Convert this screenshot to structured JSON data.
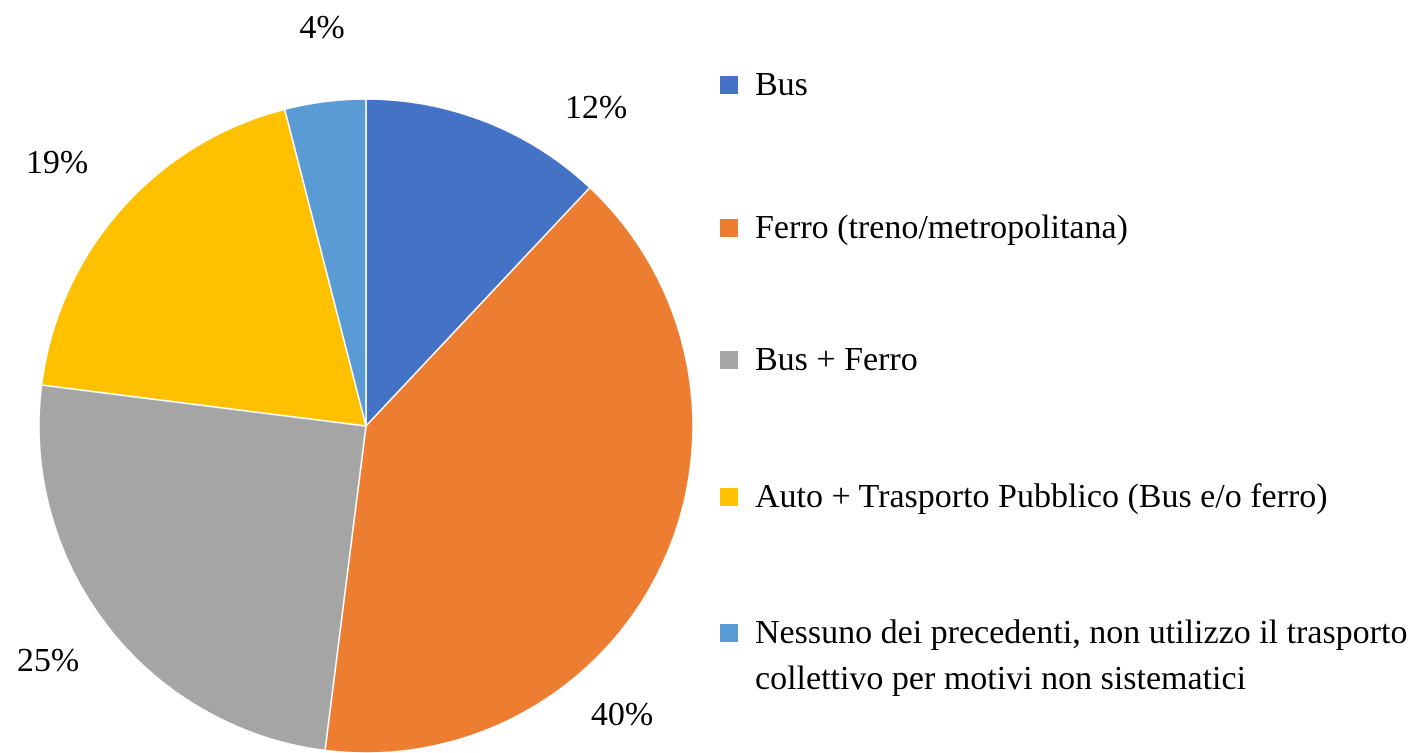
{
  "chart_data": {
    "type": "pie",
    "categories": [
      "Bus",
      "Ferro (treno/metropolitana)",
      "Bus + Ferro",
      "Auto + Trasporto Pubblico (Bus e/o ferro)",
      "Nessuno dei precedenti, non utilizzo il trasporto collettivo per motivi non sistematici"
    ],
    "values": [
      12,
      40,
      25,
      19,
      4
    ],
    "value_labels": [
      "12%",
      "40%",
      "25%",
      "19%",
      "4%"
    ],
    "colors": [
      "#4472c4",
      "#ed7d31",
      "#a5a5a5",
      "#ffc000",
      "#5b9bd5"
    ],
    "legend": "right"
  }
}
